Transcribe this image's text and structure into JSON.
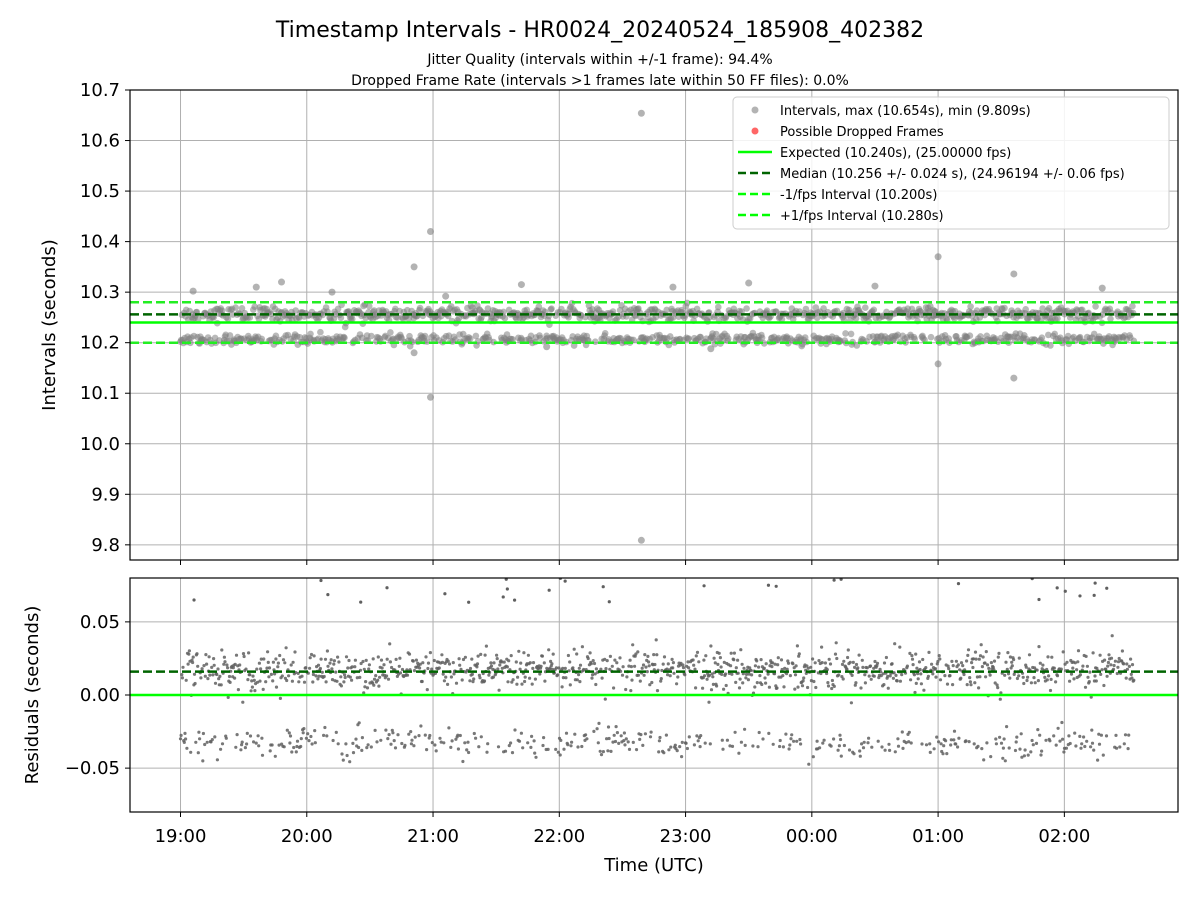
{
  "chart_data": [
    {
      "type": "scatter",
      "title": "Timestamp Intervals - HR0024_20240524_185908_402382",
      "subtitle_lines": [
        "Jitter Quality (intervals within +/-1 frame): 94.4%",
        "Dropped Frame Rate (intervals >1 frames late within 50 FF files): 0.0%"
      ],
      "xlabel": "",
      "ylabel": "Intervals (seconds)",
      "xlim": [
        -0.4,
        7.9
      ],
      "ylim": [
        9.77,
        10.7
      ],
      "yticks": [
        9.8,
        9.9,
        10.0,
        10.1,
        10.2,
        10.3,
        10.4,
        10.5,
        10.6,
        10.7
      ],
      "ytick_labels": [
        "9.8",
        "9.9",
        "10.0",
        "10.1",
        "10.2",
        "10.3",
        "10.4",
        "10.5",
        "10.6",
        "10.7"
      ],
      "xticks": [
        0,
        1,
        2,
        3,
        4,
        5,
        6,
        7
      ],
      "grid": true,
      "legend_position": "top-right",
      "legend": [
        {
          "label": "Intervals, max (10.654s), min (9.809s)",
          "kind": "marker",
          "color": "#808080"
        },
        {
          "label": "Possible Dropped Frames",
          "kind": "marker",
          "color": "#ff0000"
        },
        {
          "label": "Expected (10.240s), (25.00000 fps)",
          "kind": "line",
          "color": "#00ff00",
          "style": "solid"
        },
        {
          "label": "Median (10.256 +/- 0.024 s), (24.96194 +/- 0.06 fps)",
          "kind": "line",
          "color": "#006400",
          "style": "dashed"
        },
        {
          "label": "-1/fps Interval (10.200s)",
          "kind": "line",
          "color": "#00ff00",
          "style": "dashed"
        },
        {
          "label": "+1/fps Interval (10.280s)",
          "kind": "line",
          "color": "#00ff00",
          "style": "dashed"
        }
      ],
      "reference_lines": {
        "expected": 10.24,
        "median": 10.256,
        "minus_one_frame": 10.2,
        "plus_one_frame": 10.28
      },
      "data_x_range_hours": [
        0.0,
        7.55
      ],
      "clusters": [
        {
          "center": 10.256,
          "spread": 0.012,
          "share": 0.6
        },
        {
          "center": 10.207,
          "spread": 0.008,
          "share": 0.4
        }
      ],
      "outliers": [
        {
          "x": 3.65,
          "y": 10.654
        },
        {
          "x": 3.65,
          "y": 9.809
        },
        {
          "x": 1.98,
          "y": 10.42
        },
        {
          "x": 1.98,
          "y": 10.092
        },
        {
          "x": 1.85,
          "y": 10.35
        },
        {
          "x": 1.85,
          "y": 10.18
        },
        {
          "x": 6.0,
          "y": 10.37
        },
        {
          "x": 6.0,
          "y": 10.158
        },
        {
          "x": 6.6,
          "y": 10.336
        },
        {
          "x": 6.6,
          "y": 10.13
        },
        {
          "x": 0.1,
          "y": 10.302
        },
        {
          "x": 0.6,
          "y": 10.31
        },
        {
          "x": 0.8,
          "y": 10.32
        },
        {
          "x": 1.2,
          "y": 10.3
        },
        {
          "x": 2.1,
          "y": 10.292
        },
        {
          "x": 2.7,
          "y": 10.315
        },
        {
          "x": 3.9,
          "y": 10.31
        },
        {
          "x": 4.5,
          "y": 10.318
        },
        {
          "x": 5.5,
          "y": 10.312
        },
        {
          "x": 7.3,
          "y": 10.308
        },
        {
          "x": 4.2,
          "y": 10.188
        },
        {
          "x": 2.9,
          "y": 10.192
        }
      ]
    },
    {
      "type": "scatter",
      "title": "",
      "xlabel": "Time (UTC)",
      "ylabel": "Residuals (seconds)",
      "xlim": [
        -0.4,
        7.9
      ],
      "ylim": [
        -0.08,
        0.08
      ],
      "yticks": [
        -0.05,
        0.0,
        0.05
      ],
      "ytick_labels": [
        "−0.05",
        "0.00",
        "0.05"
      ],
      "xticks": [
        0,
        1,
        2,
        3,
        4,
        5,
        6,
        7
      ],
      "xtick_labels": [
        "19:00",
        "20:00",
        "21:00",
        "22:00",
        "23:00",
        "00:00",
        "01:00",
        "02:00"
      ],
      "grid": true,
      "reference_lines": {
        "zero": 0.0,
        "median": 0.016
      },
      "data_x_range_hours": [
        0.0,
        7.55
      ],
      "clusters": [
        {
          "center": 0.017,
          "spread": 0.011,
          "share": 0.7
        },
        {
          "center": -0.033,
          "spread": 0.009,
          "share": 0.3
        }
      ]
    }
  ]
}
